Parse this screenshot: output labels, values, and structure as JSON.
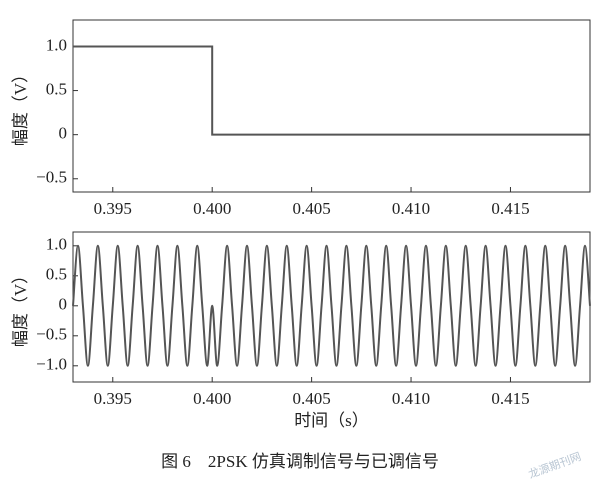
{
  "chart_data": [
    {
      "type": "line",
      "y_label": "幅度（V）",
      "x": [
        0.393,
        0.4,
        0.4,
        0.419
      ],
      "series": [
        {
          "color": "#555555",
          "values": [
            1,
            1,
            0,
            0
          ]
        }
      ],
      "xlim": [
        0.393,
        0.419
      ],
      "ylim": [
        -0.65,
        1.3
      ],
      "xticks": [
        0.395,
        {
          "value": 0.4,
          "label": "0.400"
        },
        0.405,
        {
          "value": 0.41,
          "label": "0.410"
        },
        0.415
      ],
      "yticks": [
        {
          "value": 1,
          "label": "1.0"
        },
        0.5,
        0,
        {
          "value": -0.5,
          "label": "−0.5"
        }
      ]
    },
    {
      "type": "line",
      "y_label": "幅度（V）",
      "x_label": "时间（s）",
      "x": [
        0.393,
        0.39325,
        0.3935,
        0.39375,
        0.394,
        0.39425,
        0.3945,
        0.39475,
        0.395,
        0.39525,
        0.3955,
        0.39575,
        0.396,
        0.39625,
        0.3965,
        0.39675,
        0.397,
        0.39725,
        0.3975,
        0.39775,
        0.398,
        0.39825,
        0.3985,
        0.39875,
        0.399,
        0.39925,
        0.3995,
        0.39975,
        0.4,
        0.40025,
        0.4005,
        0.40075,
        0.401,
        0.40125,
        0.4015,
        0.40175,
        0.402,
        0.40225,
        0.4025,
        0.40275,
        0.403,
        0.40325,
        0.4035,
        0.40375,
        0.404,
        0.40425,
        0.4045,
        0.40475,
        0.405,
        0.40525,
        0.4055,
        0.40575,
        0.406,
        0.40625,
        0.4065,
        0.40675,
        0.407,
        0.40725,
        0.4075,
        0.40775,
        0.408,
        0.40825,
        0.4085,
        0.40875,
        0.409,
        0.40925,
        0.4095,
        0.40975,
        0.41,
        0.41025,
        0.4105,
        0.41075,
        0.411,
        0.41125,
        0.4115,
        0.41175,
        0.412,
        0.41225,
        0.4125,
        0.41275,
        0.413,
        0.41325,
        0.4135,
        0.41375,
        0.414,
        0.41425,
        0.4145,
        0.41475,
        0.415,
        0.41525,
        0.4155,
        0.41575,
        0.416,
        0.41625,
        0.4165,
        0.41675,
        0.417,
        0.41725,
        0.4175,
        0.41775,
        0.418,
        0.41825,
        0.4185,
        0.41875,
        0.419
      ],
      "series": [
        {
          "color": "#555555",
          "values": [
            0,
            1,
            0,
            -1,
            0,
            1,
            0,
            -1,
            0,
            1,
            0,
            -1,
            0,
            1,
            0,
            -1,
            0,
            1,
            0,
            -1,
            0,
            1,
            0,
            -1,
            0,
            1,
            0,
            -1,
            0,
            -1,
            0,
            1,
            0,
            -1,
            0,
            1,
            0,
            -1,
            0,
            1,
            0,
            -1,
            0,
            1,
            0,
            -1,
            0,
            1,
            0,
            -1,
            0,
            1,
            0,
            -1,
            0,
            1,
            0,
            -1,
            0,
            1,
            0,
            -1,
            0,
            1,
            0,
            -1,
            0,
            1,
            0,
            -1,
            0,
            1,
            0,
            -1,
            0,
            1,
            0,
            -1,
            0,
            1,
            0,
            -1,
            0,
            1,
            0,
            -1,
            0,
            1,
            0,
            -1,
            0,
            1,
            0,
            -1,
            0,
            1,
            0,
            -1,
            0,
            1,
            0,
            -1,
            0,
            1,
            0
          ]
        }
      ],
      "xlim": [
        0.393,
        0.419
      ],
      "ylim": [
        -1.27,
        1.23
      ],
      "xticks": [
        0.395,
        {
          "value": 0.4,
          "label": "0.400"
        },
        0.405,
        {
          "value": 0.41,
          "label": "0.410"
        },
        0.415
      ],
      "yticks": [
        {
          "value": 1,
          "label": "1.0"
        },
        {
          "value": 0.5,
          "label": "0.5"
        },
        0,
        {
          "value": -0.5,
          "label": "−0.5"
        },
        {
          "value": -1,
          "label": "−1.0"
        }
      ]
    }
  ],
  "caption": "图 6　2PSK 仿真调制信号与已调信号",
  "watermark": "龙源期刊网"
}
